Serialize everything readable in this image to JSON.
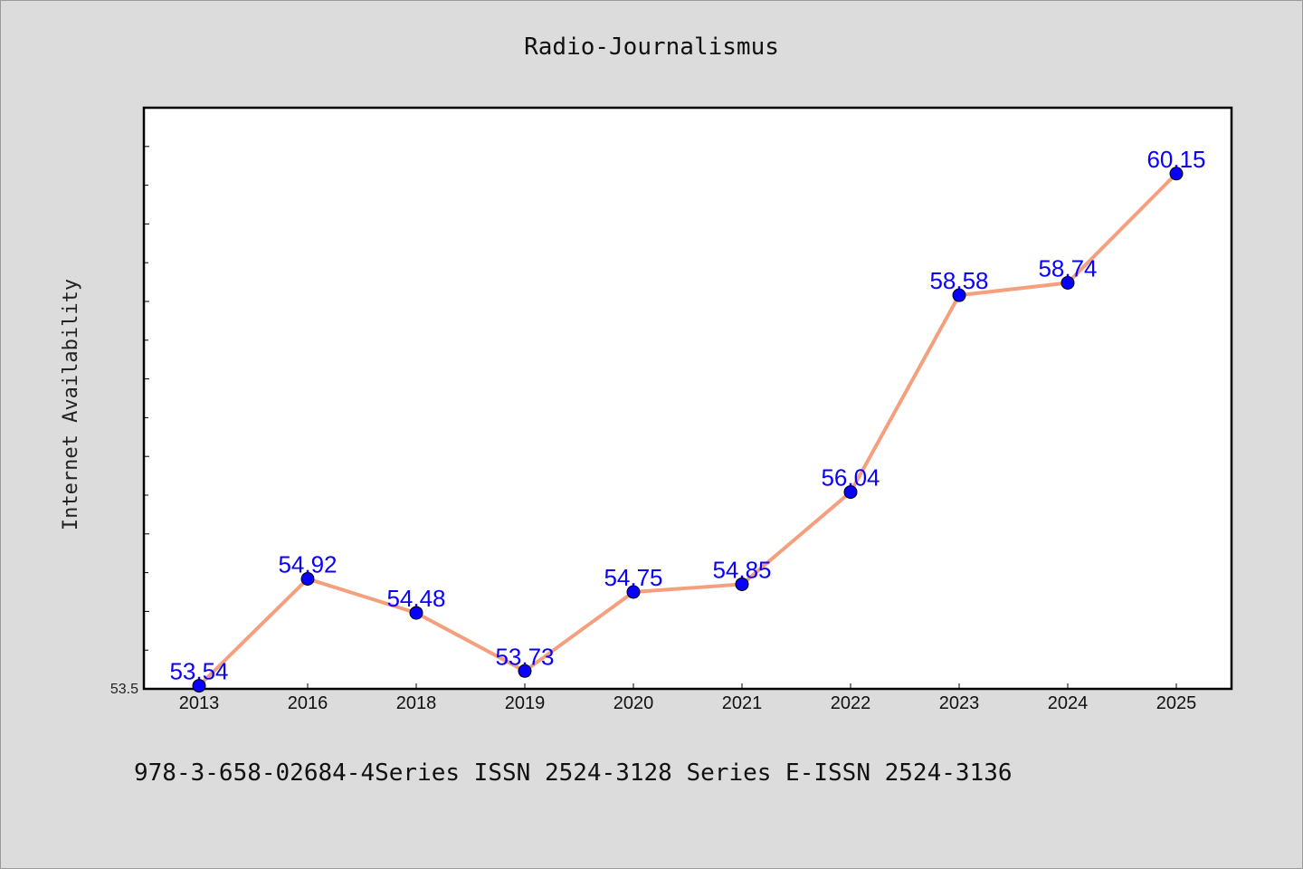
{
  "chart_data": {
    "type": "line",
    "title": "Radio-Journalismus",
    "xlabel": "",
    "ylabel": "Internet Availability",
    "categories": [
      "2013",
      "2016",
      "2018",
      "2019",
      "2020",
      "2021",
      "2022",
      "2023",
      "2024",
      "2025"
    ],
    "series": [
      {
        "values": [
          53.54,
          54.92,
          54.48,
          53.73,
          54.75,
          54.85,
          56.04,
          58.58,
          58.74,
          60.15
        ]
      }
    ],
    "data_labels": [
      "53.54",
      "54.92",
      "54.48",
      "53.73",
      "54.75",
      "54.85",
      "56.04",
      "58.58",
      "58.74",
      "60.15"
    ],
    "y_tick_labels": [
      "53.5"
    ],
    "ylim": [
      53.5,
      61.0
    ],
    "grid": false,
    "colors": {
      "line": "#f4a07e",
      "marker": "#0a00ff",
      "label": "#0a00ff",
      "plot_bg": "#ffffff",
      "page_bg": "#dcdcdc"
    }
  },
  "footer": {
    "text": "978-3-658-02684-4Series ISSN 2524-3128 Series E-ISSN 2524-3136"
  }
}
